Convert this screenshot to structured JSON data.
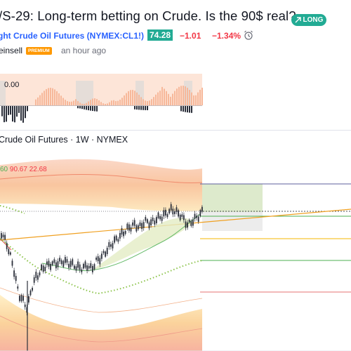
{
  "header": {
    "title": "/S-29: Long-term betting on Crude. Is the 90$ real?",
    "badge_label": "LONG",
    "badge_icon": "arrow-up-right-icon",
    "symbol_link": "ght Crude Oil Futures (NYMEX:CL1!)",
    "price": "74.28",
    "change": "−1.01",
    "change_percent": "−1.34%",
    "alarm_icon": "alarm-clock-icon",
    "author": "einsell",
    "premium_label": "PREMIUM",
    "time_ago": "an hour ago"
  },
  "oscillator": {
    "value_label": "0.00"
  },
  "chart": {
    "legend_title": "Crude Oil Futures · 1W · NYMEX",
    "legend_values": [
      "60",
      "90.67",
      "22.68"
    ],
    "colors": {
      "up": "#26a69a",
      "down": "#ef5350",
      "candle": "#2a2e39",
      "long_zone": "#d9e8c6",
      "trend_line": "#f0a020"
    }
  }
}
